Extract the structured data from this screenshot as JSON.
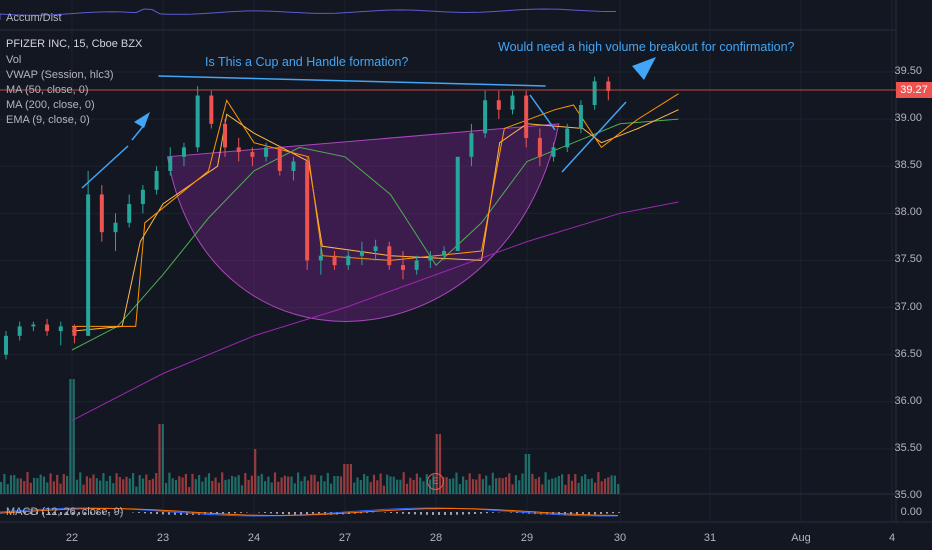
{
  "indicators": {
    "accum": "Accum/Dist",
    "title": "PFIZER INC, 15, Cboe BZX",
    "vol": "Vol",
    "vwap": "VWAP (Session, hlc3)",
    "ma50": "MA (50, close, 0)",
    "ma200": "MA (200, close, 0)",
    "ema9": "EMA (9, close, 0)",
    "macd": "MACD (12, 26, close, 9)"
  },
  "annotations": {
    "cup": "Is This a Cup and Handle formation?",
    "breakout": "Would need a high volume breakout for confirmation?",
    "earnings": "E"
  },
  "price_axis": {
    "current_price": "39.27",
    "ticks": [
      "39.50",
      "39.00",
      "38.50",
      "38.00",
      "37.50",
      "37.00",
      "36.50",
      "36.00",
      "35.50",
      "35.00"
    ],
    "macd_tick": "0.00"
  },
  "time_axis": {
    "ticks": [
      "22",
      "23",
      "24",
      "27",
      "28",
      "29",
      "30",
      "31",
      "Aug",
      "4"
    ]
  },
  "colors": {
    "up": "#26a69a",
    "down": "#ef5350",
    "ma50": "#4caf50",
    "ma200": "#9c27b0",
    "ema": "#ff9800",
    "annotation": "#42a5f5"
  },
  "chart_data": {
    "type": "candlestick",
    "title": "PFIZER INC, 15, Cboe BZX",
    "ylim": [
      34.85,
      39.75
    ],
    "current_price": 39.27,
    "x_days": [
      "22",
      "23",
      "24",
      "27",
      "28",
      "29",
      "30",
      "31",
      "Aug",
      "4"
    ],
    "series": [
      {
        "name": "MA (200, close, 0)",
        "points": [
          [
            0,
            35.8
          ],
          [
            1,
            36.3
          ],
          [
            2,
            36.7
          ],
          [
            3,
            37.0
          ],
          [
            4,
            37.35
          ],
          [
            5,
            37.7
          ],
          [
            6,
            38.0
          ],
          [
            6.65,
            38.12
          ]
        ]
      },
      {
        "name": "MA (50, close, 0)",
        "points": [
          [
            0,
            36.55
          ],
          [
            0.5,
            36.8
          ],
          [
            1,
            37.35
          ],
          [
            1.5,
            37.95
          ],
          [
            2,
            38.45
          ],
          [
            2.5,
            38.7
          ],
          [
            3,
            38.6
          ],
          [
            3.5,
            38.2
          ],
          [
            4,
            37.45
          ],
          [
            4.5,
            37.9
          ],
          [
            5,
            38.55
          ],
          [
            5.5,
            38.75
          ],
          [
            6,
            38.95
          ],
          [
            6.65,
            39.0
          ]
        ]
      },
      {
        "name": "VWAP (Session, hlc3)",
        "points": [
          [
            0,
            36.75
          ],
          [
            0.55,
            36.8
          ],
          [
            0.75,
            37.7
          ],
          [
            1,
            38.1
          ],
          [
            1.6,
            38.5
          ],
          [
            1.7,
            39.05
          ],
          [
            2,
            38.85
          ],
          [
            2.6,
            38.55
          ],
          [
            2.75,
            37.65
          ],
          [
            3.5,
            37.55
          ],
          [
            4.5,
            37.5
          ],
          [
            4.7,
            38.75
          ],
          [
            5,
            38.95
          ],
          [
            5.6,
            38.9
          ],
          [
            5.8,
            38.75
          ],
          [
            6.2,
            38.9
          ],
          [
            6.65,
            39.1
          ]
        ]
      },
      {
        "name": "EMA (9, close, 0)",
        "points": [
          [
            0,
            36.8
          ],
          [
            0.7,
            36.8
          ],
          [
            0.8,
            37.9
          ],
          [
            1.5,
            38.45
          ],
          [
            1.7,
            39.2
          ],
          [
            2,
            38.75
          ],
          [
            2.6,
            38.6
          ],
          [
            2.75,
            37.55
          ],
          [
            3.5,
            37.5
          ],
          [
            4.5,
            37.6
          ],
          [
            4.75,
            38.9
          ],
          [
            5.3,
            39.1
          ],
          [
            5.5,
            39.15
          ],
          [
            5.8,
            38.7
          ],
          [
            6.2,
            39.0
          ],
          [
            6.65,
            39.27
          ]
        ]
      }
    ],
    "candles_ohlc": [
      [
        36.5,
        36.75,
        36.45,
        36.7
      ],
      [
        36.7,
        36.85,
        36.65,
        36.8
      ],
      [
        36.8,
        36.85,
        36.75,
        36.82
      ],
      [
        36.82,
        36.88,
        36.7,
        36.75
      ],
      [
        36.75,
        36.85,
        36.6,
        36.8
      ],
      [
        36.8,
        36.82,
        36.62,
        36.7
      ],
      [
        36.7,
        38.45,
        36.7,
        38.2
      ],
      [
        38.2,
        38.3,
        37.7,
        37.8
      ],
      [
        37.8,
        38.0,
        37.6,
        37.9
      ],
      [
        37.9,
        38.2,
        37.85,
        38.1
      ],
      [
        38.1,
        38.3,
        38.0,
        38.25
      ],
      [
        38.25,
        38.5,
        38.2,
        38.45
      ],
      [
        38.45,
        38.7,
        38.4,
        38.6
      ],
      [
        38.6,
        38.75,
        38.5,
        38.7
      ],
      [
        38.7,
        39.35,
        38.65,
        39.25
      ],
      [
        39.25,
        39.3,
        38.9,
        38.95
      ],
      [
        38.95,
        39.0,
        38.6,
        38.7
      ],
      [
        38.7,
        38.8,
        38.55,
        38.65
      ],
      [
        38.65,
        38.7,
        38.5,
        38.6
      ],
      [
        38.6,
        38.75,
        38.55,
        38.7
      ],
      [
        38.7,
        38.72,
        38.4,
        38.45
      ],
      [
        38.45,
        38.6,
        38.35,
        38.55
      ],
      [
        38.55,
        38.6,
        37.4,
        37.5
      ],
      [
        37.5,
        37.65,
        37.35,
        37.55
      ],
      [
        37.55,
        37.6,
        37.4,
        37.45
      ],
      [
        37.45,
        37.6,
        37.4,
        37.55
      ],
      [
        37.55,
        37.7,
        37.45,
        37.6
      ],
      [
        37.6,
        37.72,
        37.5,
        37.65
      ],
      [
        37.65,
        37.7,
        37.4,
        37.45
      ],
      [
        37.45,
        37.6,
        37.3,
        37.4
      ],
      [
        37.4,
        37.55,
        37.35,
        37.5
      ],
      [
        37.5,
        37.6,
        37.42,
        37.55
      ],
      [
        37.55,
        37.65,
        37.5,
        37.6
      ],
      [
        37.6,
        37.62,
        38.0,
        38.6
      ],
      [
        38.6,
        38.95,
        38.5,
        38.85
      ],
      [
        38.85,
        39.3,
        38.8,
        39.2
      ],
      [
        39.2,
        39.3,
        39.0,
        39.1
      ],
      [
        39.1,
        39.3,
        39.05,
        39.25
      ],
      [
        39.25,
        39.3,
        38.7,
        38.8
      ],
      [
        38.8,
        38.9,
        38.5,
        38.6
      ],
      [
        38.6,
        38.75,
        38.55,
        38.7
      ],
      [
        38.7,
        38.95,
        38.65,
        38.9
      ],
      [
        38.9,
        39.2,
        38.85,
        39.15
      ],
      [
        39.15,
        39.45,
        39.1,
        39.4
      ],
      [
        39.4,
        39.45,
        39.2,
        39.3
      ]
    ],
    "cup_and_handle": {
      "rim_start": [
        1.05,
        39.42
      ],
      "rim_end": [
        5.45,
        39.32
      ],
      "cup_bottom": 36.75
    }
  }
}
